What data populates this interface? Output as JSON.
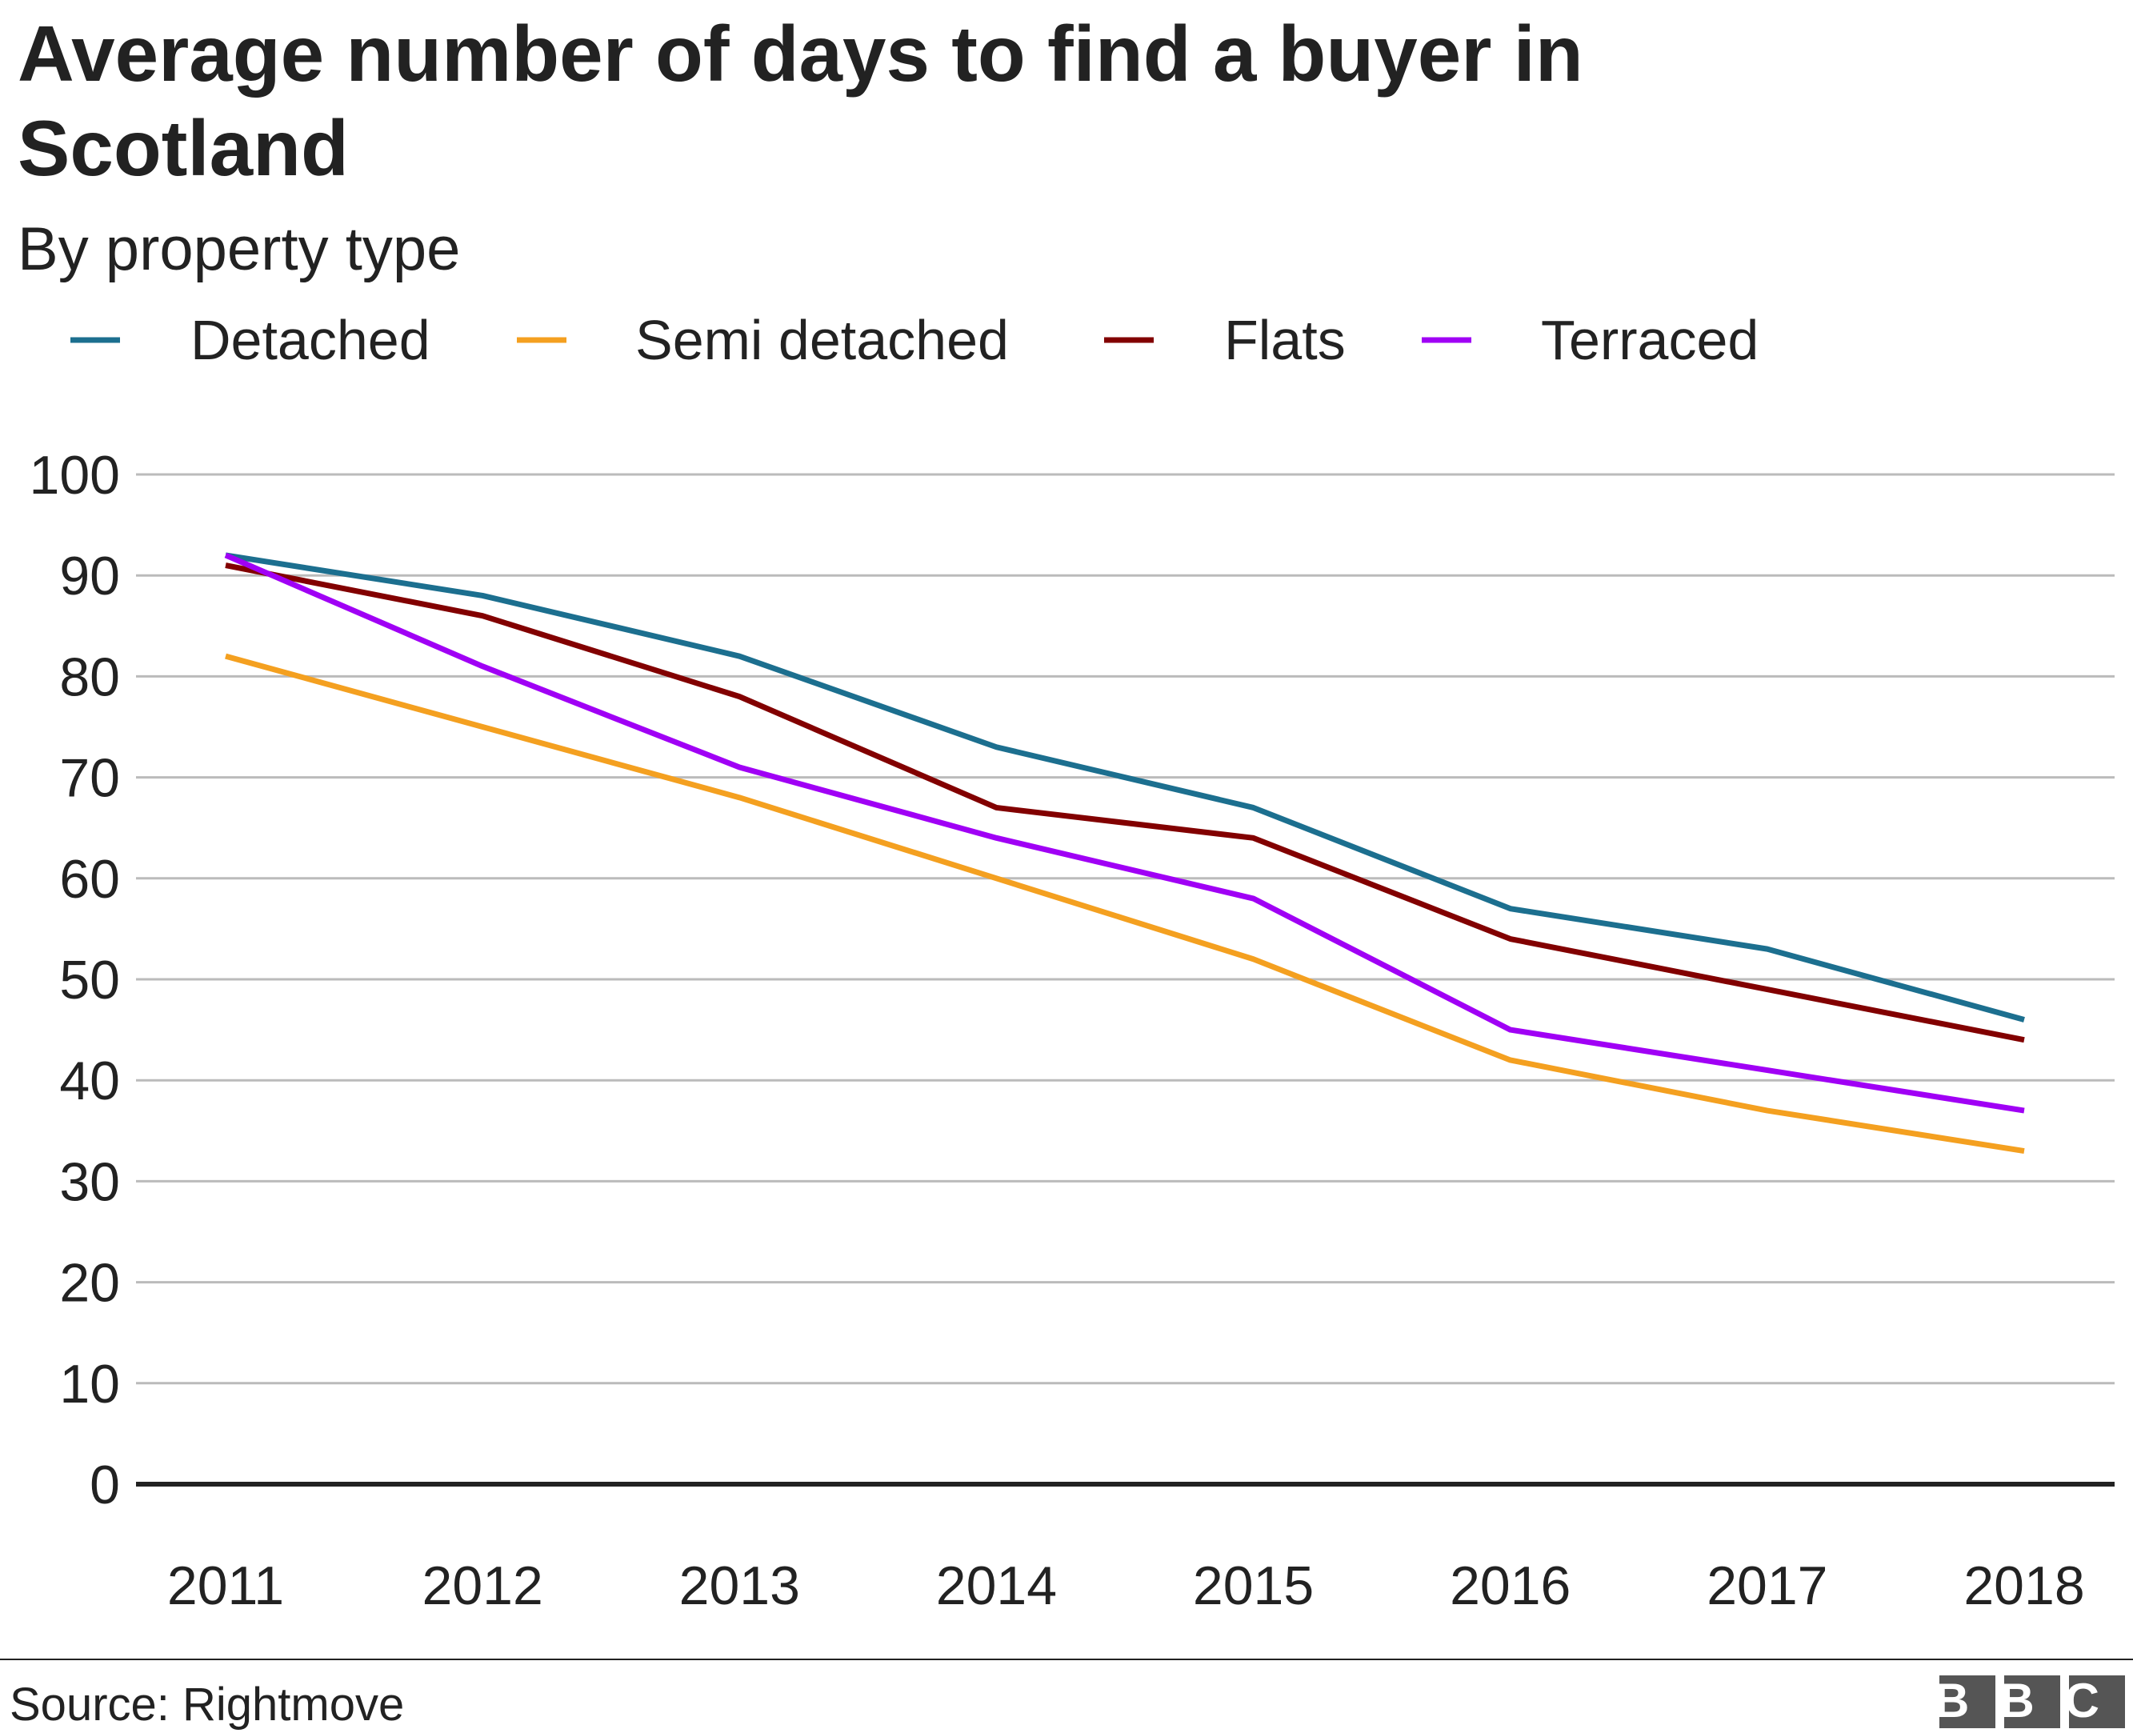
{
  "chart_data": {
    "type": "line",
    "title": "Average number of days to find a buyer in Scotland",
    "subtitle": "By property type",
    "categories": [
      "2011",
      "2012",
      "2013",
      "2014",
      "2015",
      "2016",
      "2017",
      "2018"
    ],
    "series": [
      {
        "name": "Detached",
        "color": "#1c6f8f",
        "values": [
          92,
          88,
          82,
          73,
          67,
          57,
          53,
          46
        ]
      },
      {
        "name": "Semi detached",
        "color": "#f4a020",
        "values": [
          82,
          75,
          68,
          60,
          52,
          42,
          37,
          33
        ]
      },
      {
        "name": "Flats",
        "color": "#820000",
        "values": [
          91,
          86,
          78,
          67,
          64,
          54,
          49,
          44
        ]
      },
      {
        "name": "Terraced",
        "color": "#a000f5",
        "values": [
          92,
          81,
          71,
          64,
          58,
          45,
          41,
          37
        ]
      }
    ],
    "ylim": [
      0,
      100
    ],
    "yticks": [
      0,
      10,
      20,
      30,
      40,
      50,
      60,
      70,
      80,
      90,
      100
    ],
    "grid": true,
    "source": "Source: Rightmove",
    "logo": "BBC"
  }
}
